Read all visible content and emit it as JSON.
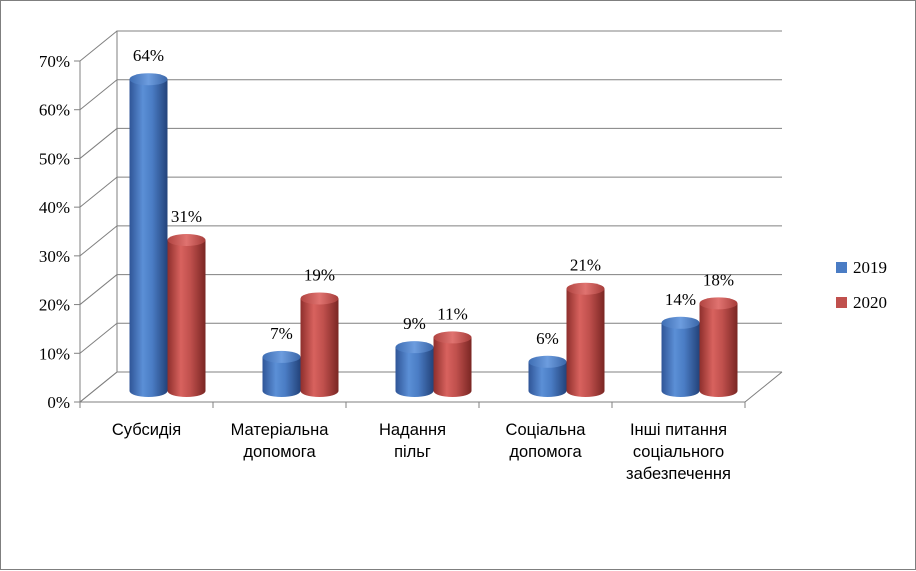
{
  "chart_data": {
    "type": "bar",
    "title": "",
    "xlabel": "",
    "ylabel": "",
    "categories": [
      [
        "Субсидія"
      ],
      [
        "Матеріальна",
        "допомога"
      ],
      [
        "Надання",
        "пільг"
      ],
      [
        "Соціальна",
        "допомога"
      ],
      [
        "Інші питання",
        "соціального",
        "забезпечення"
      ]
    ],
    "series": [
      {
        "name": "2019",
        "values": [
          64,
          7,
          9,
          6,
          14
        ],
        "labels": [
          "64%",
          "7%",
          "9%",
          "6%",
          "14%"
        ],
        "color": "#4a7cc4"
      },
      {
        "name": "2020",
        "values": [
          31,
          19,
          11,
          21,
          18
        ],
        "labels": [
          "31%",
          "19%",
          "11%",
          "21%",
          "18%"
        ],
        "color": "#c0504d"
      }
    ],
    "ylim": [
      0,
      70
    ],
    "yticks": [
      "0%",
      "10%",
      "20%",
      "30%",
      "40%",
      "50%",
      "60%",
      "70%"
    ],
    "grid": true,
    "legend": "right",
    "style": "3d-cylinder"
  }
}
